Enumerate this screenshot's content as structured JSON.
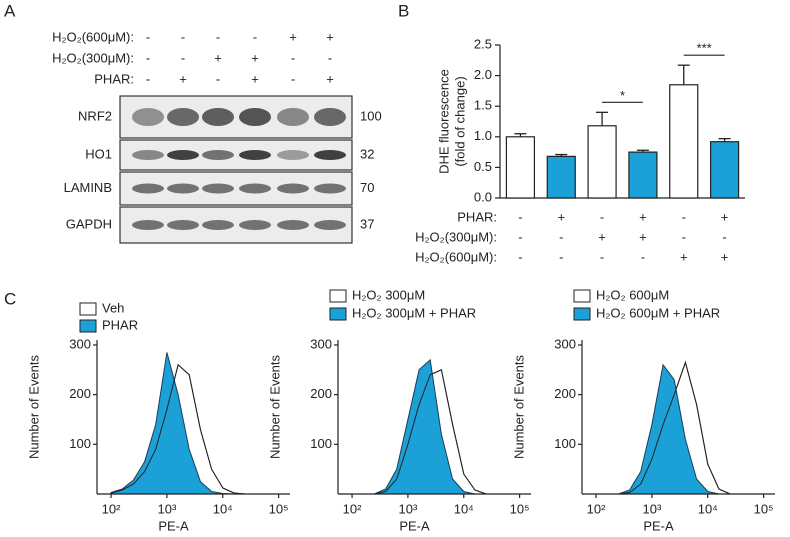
{
  "panel_labels": [
    "A",
    "B",
    "C"
  ],
  "blot": {
    "conditions": [
      {
        "label": "H₂O₂(600μM):",
        "signs": [
          "-",
          "-",
          "-",
          "-",
          "+",
          "+"
        ]
      },
      {
        "label": "H₂O₂(300μM):",
        "signs": [
          "-",
          "-",
          "+",
          "+",
          "-",
          "-"
        ]
      },
      {
        "label": "PHAR:",
        "signs": [
          "-",
          "+",
          "-",
          "+",
          "-",
          "+"
        ]
      }
    ],
    "rows": [
      {
        "label": "NRF2",
        "mw": "100"
      },
      {
        "label": "HO1",
        "mw": "32"
      },
      {
        "label": "LAMINB",
        "mw": "70"
      },
      {
        "label": "GAPDH",
        "mw": "37"
      }
    ]
  },
  "chart_data": [
    {
      "type": "bar",
      "y_label": [
        "DHE fluorescence",
        "(fold of change)"
      ],
      "values": [
        1.0,
        0.68,
        1.18,
        0.75,
        1.85,
        0.92
      ],
      "errors": [
        0.05,
        0.03,
        0.22,
        0.03,
        0.32,
        0.05
      ],
      "colors": [
        "#ffffff",
        "#1ba1d8",
        "#ffffff",
        "#1ba1d8",
        "#ffffff",
        "#1ba1d8"
      ],
      "ylim": [
        0,
        2.5
      ],
      "yticks": [
        {
          "value": 0,
          "label": "0.0"
        },
        {
          "value": 0.5,
          "label": "0.5"
        },
        {
          "value": 1,
          "label": "1.0"
        },
        {
          "value": 1.5,
          "label": "1.5"
        },
        {
          "value": 2,
          "label": "2.0"
        },
        {
          "value": 2.5,
          "label": "2.5"
        }
      ],
      "conditions": [
        {
          "label": "PHAR:",
          "signs": [
            "-",
            "+",
            "-",
            "+",
            "-",
            "+"
          ]
        },
        {
          "label": "H₂O₂(300μM):",
          "signs": [
            "-",
            "-",
            "+",
            "+",
            "-",
            "-"
          ]
        },
        {
          "label": "H₂O₂(600μM):",
          "signs": [
            "-",
            "-",
            "-",
            "-",
            "+",
            "+"
          ]
        }
      ],
      "annotations": [
        {
          "text": "*",
          "bars": [
            2,
            3
          ]
        },
        {
          "text": "***",
          "bars": [
            4,
            5
          ]
        }
      ]
    },
    {
      "type": "area",
      "xscale": "log",
      "x_label": "PE-A",
      "y_label": "Number of Events",
      "x": [
        100,
        158,
        251,
        398,
        631,
        1000,
        1585,
        2512,
        3981,
        6310,
        10000,
        15849,
        25119
      ],
      "xlim": [
        56,
        160000
      ],
      "xticks": [
        {
          "value": 100,
          "label": "10²"
        },
        {
          "value": 1000,
          "label": "10³"
        },
        {
          "value": 10000,
          "label": "10⁴"
        },
        {
          "value": 100000,
          "label": "10⁵"
        }
      ],
      "ylim": [
        0,
        310
      ],
      "yticks": [
        100,
        200,
        300
      ],
      "series": [
        {
          "name": "Veh",
          "color": "#ffffff",
          "values": [
            2,
            8,
            20,
            45,
            90,
            170,
            260,
            240,
            130,
            50,
            12,
            2,
            0
          ]
        },
        {
          "name": "PHAR",
          "color": "#1ba1d8",
          "values": [
            3,
            10,
            28,
            65,
            140,
            285,
            200,
            90,
            25,
            5,
            1,
            0,
            0
          ]
        }
      ]
    },
    {
      "type": "area",
      "xscale": "log",
      "x_label": "PE-A",
      "y_label": "Number of Events",
      "x": [
        100,
        158,
        251,
        398,
        631,
        1000,
        1585,
        2512,
        3981,
        6310,
        10000,
        15849,
        25119
      ],
      "xlim": [
        56,
        160000
      ],
      "xticks": [
        {
          "value": 100,
          "label": "10²"
        },
        {
          "value": 1000,
          "label": "10³"
        },
        {
          "value": 10000,
          "label": "10⁴"
        },
        {
          "value": 100000,
          "label": "10⁵"
        }
      ],
      "ylim": [
        0,
        310
      ],
      "yticks": [
        100,
        200,
        300
      ],
      "series": [
        {
          "name": "H₂O₂ 300μM",
          "color": "#ffffff",
          "values": [
            0,
            0,
            0,
            5,
            30,
            100,
            180,
            240,
            250,
            140,
            40,
            8,
            0
          ]
        },
        {
          "name": "H₂O₂ 300μM + PHAR",
          "color": "#1ba1d8",
          "values": [
            0,
            0,
            0,
            10,
            50,
            150,
            250,
            270,
            120,
            30,
            5,
            0,
            0
          ]
        }
      ]
    },
    {
      "type": "area",
      "xscale": "log",
      "x_label": "PE-A",
      "y_label": "Number of Events",
      "x": [
        100,
        158,
        251,
        398,
        631,
        1000,
        1585,
        2512,
        3981,
        6310,
        10000,
        15849,
        25119
      ],
      "xlim": [
        56,
        160000
      ],
      "xticks": [
        {
          "value": 100,
          "label": "10²"
        },
        {
          "value": 1000,
          "label": "10³"
        },
        {
          "value": 10000,
          "label": "10⁴"
        },
        {
          "value": 100000,
          "label": "10⁵"
        }
      ],
      "ylim": [
        0,
        310
      ],
      "yticks": [
        100,
        200,
        300
      ],
      "series": [
        {
          "name": "H₂O₂ 600μM",
          "color": "#ffffff",
          "values": [
            0,
            0,
            0,
            3,
            20,
            70,
            140,
            200,
            265,
            180,
            60,
            10,
            0
          ]
        },
        {
          "name": "H₂O₂ 600μM + PHAR",
          "color": "#1ba1d8",
          "values": [
            0,
            0,
            0,
            8,
            45,
            140,
            260,
            230,
            110,
            30,
            5,
            0,
            0
          ]
        }
      ]
    }
  ]
}
